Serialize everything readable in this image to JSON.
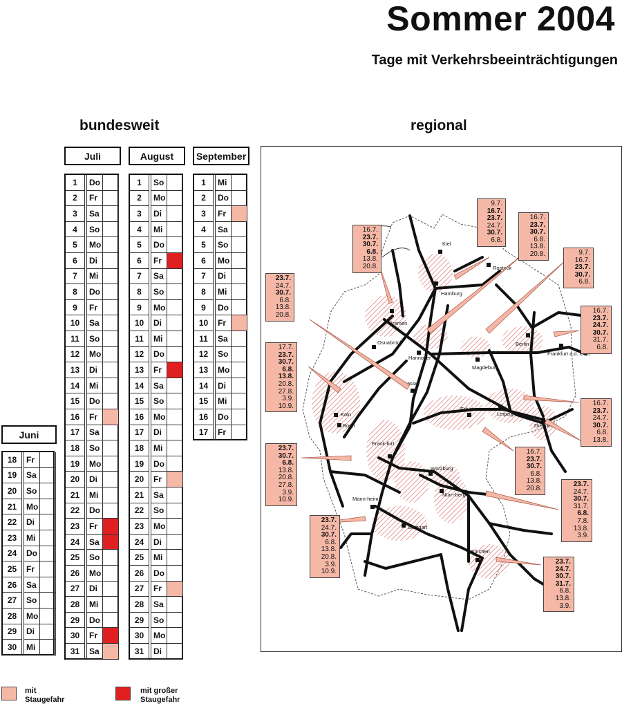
{
  "title": "Sommer 2004",
  "subtitle": "Tage mit Verkehrsbeeinträchtigungen",
  "headings": {
    "national": "bundesweit",
    "regional": "regional"
  },
  "colors": {
    "risk": "#f5b8a7",
    "high_risk": "#e02020",
    "hatch": "#e08080"
  },
  "months": [
    {
      "name": "Juni",
      "rows": [
        {
          "d": "18",
          "w": "Fr",
          "s": "none"
        },
        {
          "d": "19",
          "w": "Sa",
          "s": "none"
        },
        {
          "d": "20",
          "w": "So",
          "s": "none"
        },
        {
          "d": "21",
          "w": "Mo",
          "s": "none"
        },
        {
          "d": "22",
          "w": "Di",
          "s": "none"
        },
        {
          "d": "23",
          "w": "Mi",
          "s": "none"
        },
        {
          "d": "24",
          "w": "Do",
          "s": "none"
        },
        {
          "d": "25",
          "w": "Fr",
          "s": "none"
        },
        {
          "d": "26",
          "w": "Sa",
          "s": "none"
        },
        {
          "d": "27",
          "w": "So",
          "s": "none"
        },
        {
          "d": "28",
          "w": "Mo",
          "s": "none"
        },
        {
          "d": "29",
          "w": "Di",
          "s": "none"
        },
        {
          "d": "30",
          "w": "Mi",
          "s": "none"
        }
      ]
    },
    {
      "name": "Juli",
      "rows": [
        {
          "d": "1",
          "w": "Do",
          "s": "none"
        },
        {
          "d": "2",
          "w": "Fr",
          "s": "none"
        },
        {
          "d": "3",
          "w": "Sa",
          "s": "none"
        },
        {
          "d": "4",
          "w": "So",
          "s": "none"
        },
        {
          "d": "5",
          "w": "Mo",
          "s": "none"
        },
        {
          "d": "6",
          "w": "Di",
          "s": "none"
        },
        {
          "d": "7",
          "w": "Mi",
          "s": "none"
        },
        {
          "d": "8",
          "w": "Do",
          "s": "none"
        },
        {
          "d": "9",
          "w": "Fr",
          "s": "none"
        },
        {
          "d": "10",
          "w": "Sa",
          "s": "none"
        },
        {
          "d": "11",
          "w": "So",
          "s": "none"
        },
        {
          "d": "12",
          "w": "Mo",
          "s": "none"
        },
        {
          "d": "13",
          "w": "Di",
          "s": "none"
        },
        {
          "d": "14",
          "w": "Mi",
          "s": "none"
        },
        {
          "d": "15",
          "w": "Do",
          "s": "none"
        },
        {
          "d": "16",
          "w": "Fr",
          "s": "risk"
        },
        {
          "d": "17",
          "w": "Sa",
          "s": "none"
        },
        {
          "d": "18",
          "w": "So",
          "s": "none"
        },
        {
          "d": "19",
          "w": "Mo",
          "s": "none"
        },
        {
          "d": "20",
          "w": "Di",
          "s": "none"
        },
        {
          "d": "21",
          "w": "Mi",
          "s": "none"
        },
        {
          "d": "22",
          "w": "Do",
          "s": "none"
        },
        {
          "d": "23",
          "w": "Fr",
          "s": "high"
        },
        {
          "d": "24",
          "w": "Sa",
          "s": "high"
        },
        {
          "d": "25",
          "w": "So",
          "s": "none"
        },
        {
          "d": "26",
          "w": "Mo",
          "s": "none"
        },
        {
          "d": "27",
          "w": "Di",
          "s": "none"
        },
        {
          "d": "28",
          "w": "Mi",
          "s": "none"
        },
        {
          "d": "29",
          "w": "Do",
          "s": "none"
        },
        {
          "d": "30",
          "w": "Fr",
          "s": "high"
        },
        {
          "d": "31",
          "w": "Sa",
          "s": "risk"
        }
      ]
    },
    {
      "name": "August",
      "rows": [
        {
          "d": "1",
          "w": "So",
          "s": "none"
        },
        {
          "d": "2",
          "w": "Mo",
          "s": "none"
        },
        {
          "d": "3",
          "w": "Di",
          "s": "none"
        },
        {
          "d": "4",
          "w": "Mi",
          "s": "none"
        },
        {
          "d": "5",
          "w": "Do",
          "s": "none"
        },
        {
          "d": "6",
          "w": "Fr",
          "s": "high"
        },
        {
          "d": "7",
          "w": "Sa",
          "s": "none"
        },
        {
          "d": "8",
          "w": "So",
          "s": "none"
        },
        {
          "d": "9",
          "w": "Mo",
          "s": "none"
        },
        {
          "d": "10",
          "w": "Di",
          "s": "none"
        },
        {
          "d": "11",
          "w": "Mi",
          "s": "none"
        },
        {
          "d": "12",
          "w": "Do",
          "s": "none"
        },
        {
          "d": "13",
          "w": "Fr",
          "s": "high"
        },
        {
          "d": "14",
          "w": "Sa",
          "s": "none"
        },
        {
          "d": "15",
          "w": "So",
          "s": "none"
        },
        {
          "d": "16",
          "w": "Mo",
          "s": "none"
        },
        {
          "d": "17",
          "w": "Di",
          "s": "none"
        },
        {
          "d": "18",
          "w": "Mi",
          "s": "none"
        },
        {
          "d": "19",
          "w": "Do",
          "s": "none"
        },
        {
          "d": "20",
          "w": "Fr",
          "s": "risk"
        },
        {
          "d": "21",
          "w": "Sa",
          "s": "none"
        },
        {
          "d": "22",
          "w": "So",
          "s": "none"
        },
        {
          "d": "23",
          "w": "Mo",
          "s": "none"
        },
        {
          "d": "24",
          "w": "Di",
          "s": "none"
        },
        {
          "d": "25",
          "w": "Mi",
          "s": "none"
        },
        {
          "d": "26",
          "w": "Do",
          "s": "none"
        },
        {
          "d": "27",
          "w": "Fr",
          "s": "risk"
        },
        {
          "d": "28",
          "w": "Sa",
          "s": "none"
        },
        {
          "d": "29",
          "w": "So",
          "s": "none"
        },
        {
          "d": "30",
          "w": "Mo",
          "s": "none"
        },
        {
          "d": "31",
          "w": "Di",
          "s": "none"
        }
      ]
    },
    {
      "name": "September",
      "rows": [
        {
          "d": "1",
          "w": "Mi",
          "s": "none"
        },
        {
          "d": "2",
          "w": "Do",
          "s": "none"
        },
        {
          "d": "3",
          "w": "Fr",
          "s": "risk"
        },
        {
          "d": "4",
          "w": "Sa",
          "s": "none"
        },
        {
          "d": "5",
          "w": "So",
          "s": "none"
        },
        {
          "d": "6",
          "w": "Mo",
          "s": "none"
        },
        {
          "d": "7",
          "w": "Di",
          "s": "none"
        },
        {
          "d": "8",
          "w": "Mi",
          "s": "none"
        },
        {
          "d": "9",
          "w": "Do",
          "s": "none"
        },
        {
          "d": "10",
          "w": "Fr",
          "s": "risk"
        },
        {
          "d": "11",
          "w": "Sa",
          "s": "none"
        },
        {
          "d": "12",
          "w": "So",
          "s": "none"
        },
        {
          "d": "13",
          "w": "Mo",
          "s": "none"
        },
        {
          "d": "14",
          "w": "Di",
          "s": "none"
        },
        {
          "d": "15",
          "w": "Mi",
          "s": "none"
        },
        {
          "d": "16",
          "w": "Do",
          "s": "none"
        },
        {
          "d": "17",
          "w": "Fr",
          "s": "none"
        }
      ]
    }
  ],
  "cities": [
    "Kiel",
    "Rostock",
    "Hamburg",
    "Bremen",
    "Berlin",
    "Osnabrück",
    "Hannover",
    "Magdeburg",
    "Frankfurt a.d. Oder",
    "Kassel",
    "Köln",
    "Bonn",
    "Erfurt",
    "Leipzig",
    "Dresden",
    "Frank-furt",
    "Würzburg",
    "Nürn-berg",
    "Mann-heim",
    "Stuttgart",
    "München"
  ],
  "callouts": [
    {
      "id": "kiel",
      "lines": [
        {
          "t": "9.7.",
          "b": false
        },
        {
          "t": "16.7.",
          "b": true
        },
        {
          "t": "23.7.",
          "b": true
        },
        {
          "t": "24.7.",
          "b": false
        },
        {
          "t": "30.7.",
          "b": true
        },
        {
          "t": "6.8.",
          "b": false
        }
      ]
    },
    {
      "id": "bremen",
      "lines": [
        {
          "t": "16.7.",
          "b": false
        },
        {
          "t": "23.7.",
          "b": true
        },
        {
          "t": "30.7.",
          "b": true
        },
        {
          "t": "6.8.",
          "b": true
        },
        {
          "t": "13.8.",
          "b": false
        },
        {
          "t": "20.8.",
          "b": false
        }
      ]
    },
    {
      "id": "hannover",
      "lines": [
        {
          "t": "16.7.",
          "b": false
        },
        {
          "t": "23.7.",
          "b": true
        },
        {
          "t": "30.7.",
          "b": true
        },
        {
          "t": "6.8.",
          "b": false
        },
        {
          "t": "13.8.",
          "b": false
        },
        {
          "t": "20.8.",
          "b": false
        }
      ]
    },
    {
      "id": "magdeburg",
      "lines": [
        {
          "t": "9.7.",
          "b": false
        },
        {
          "t": "16.7.",
          "b": false
        },
        {
          "t": "23.7.",
          "b": true
        },
        {
          "t": "30.7.",
          "b": true
        },
        {
          "t": "6.8.",
          "b": false
        }
      ]
    },
    {
      "id": "berlin",
      "lines": [
        {
          "t": "16.7.",
          "b": false
        },
        {
          "t": "23.7.",
          "b": true
        },
        {
          "t": "24.7.",
          "b": true
        },
        {
          "t": "30.7.",
          "b": true
        },
        {
          "t": "31.7.",
          "b": false
        },
        {
          "t": "6.8.",
          "b": false
        }
      ]
    },
    {
      "id": "osnabrueck",
      "lines": [
        {
          "t": "23.7.",
          "b": true
        },
        {
          "t": "24.7.",
          "b": false
        },
        {
          "t": "30.7.",
          "b": true
        },
        {
          "t": "6.8.",
          "b": false
        },
        {
          "t": "13.8.",
          "b": false
        },
        {
          "t": "20.8.",
          "b": false
        }
      ]
    },
    {
      "id": "koeln",
      "lines": [
        {
          "t": "17.7.",
          "b": false
        },
        {
          "t": "23.7.",
          "b": true
        },
        {
          "t": "30.7.",
          "b": true
        },
        {
          "t": "6.8.",
          "b": true
        },
        {
          "t": "13.8.",
          "b": true
        },
        {
          "t": "20.8.",
          "b": false
        },
        {
          "t": "27.8.",
          "b": false
        },
        {
          "t": "3.9.",
          "b": false
        },
        {
          "t": "10.9.",
          "b": false
        }
      ]
    },
    {
      "id": "dresden",
      "lines": [
        {
          "t": "16.7.",
          "b": false
        },
        {
          "t": "23.7.",
          "b": true
        },
        {
          "t": "24.7.",
          "b": false
        },
        {
          "t": "30.7.",
          "b": true
        },
        {
          "t": "6.8.",
          "b": false
        },
        {
          "t": "13.8.",
          "b": false
        }
      ]
    },
    {
      "id": "frankfurt",
      "lines": [
        {
          "t": "23.7.",
          "b": true
        },
        {
          "t": "30.7.",
          "b": true
        },
        {
          "t": "6.8.",
          "b": true
        },
        {
          "t": "13.8.",
          "b": false
        },
        {
          "t": "20.8.",
          "b": false
        },
        {
          "t": "27.8.",
          "b": false
        },
        {
          "t": "3.9.",
          "b": false
        },
        {
          "t": "10.9.",
          "b": false
        }
      ]
    },
    {
      "id": "erfurt",
      "lines": [
        {
          "t": "16.7.",
          "b": false
        },
        {
          "t": "23.7.",
          "b": true
        },
        {
          "t": "30.7.",
          "b": true
        },
        {
          "t": "6.8.",
          "b": false
        },
        {
          "t": "13.8.",
          "b": false
        },
        {
          "t": "20.8.",
          "b": false
        }
      ]
    },
    {
      "id": "nuernberg",
      "lines": [
        {
          "t": "23.7.",
          "b": true
        },
        {
          "t": "24.7.",
          "b": false
        },
        {
          "t": "30.7.",
          "b": true
        },
        {
          "t": "31.7.",
          "b": false
        },
        {
          "t": "6.8.",
          "b": true
        },
        {
          "t": "7.8.",
          "b": false
        },
        {
          "t": "13.8.",
          "b": false
        },
        {
          "t": "3.9.",
          "b": false
        }
      ]
    },
    {
      "id": "stuttgart",
      "lines": [
        {
          "t": "23.7.",
          "b": true
        },
        {
          "t": "24.7.",
          "b": false
        },
        {
          "t": "30.7.",
          "b": true
        },
        {
          "t": "6.8.",
          "b": false
        },
        {
          "t": "13.8.",
          "b": false
        },
        {
          "t": "20.8.",
          "b": false
        },
        {
          "t": "3.9.",
          "b": false
        },
        {
          "t": "10.9.",
          "b": false
        }
      ]
    },
    {
      "id": "muenchen",
      "lines": [
        {
          "t": "23.7.",
          "b": true
        },
        {
          "t": "24.7.",
          "b": true
        },
        {
          "t": "30.7.",
          "b": true
        },
        {
          "t": "31.7.",
          "b": true
        },
        {
          "t": "6.8.",
          "b": false
        },
        {
          "t": "13.8.",
          "b": false
        },
        {
          "t": "3.9.",
          "b": false
        }
      ]
    }
  ],
  "legend": [
    {
      "label_1": "mit",
      "label_2": "Staugefahr",
      "color": "#f5b8a7"
    },
    {
      "label_1": "mit großer",
      "label_2": "Staugefahr",
      "color": "#e02020"
    }
  ]
}
